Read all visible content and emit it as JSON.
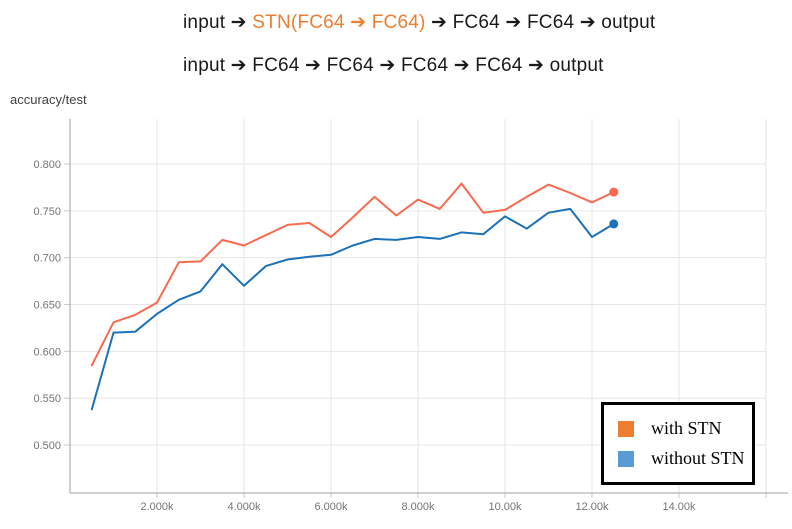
{
  "header": {
    "line1": {
      "prefix": "input ➔ ",
      "highlight": "STN(FC64 ➔ FC64)",
      "suffix": " ➔ FC64 ➔ FC64 ➔ output",
      "highlight_color": "#ED7D31"
    },
    "line2": "input ➔ FC64 ➔ FC64 ➔ FC64 ➔ FC64 ➔ output"
  },
  "chart": {
    "title": "accuracy/test"
  },
  "legend": {
    "items": [
      {
        "label": "with STN",
        "color": "#ED7D31"
      },
      {
        "label": "without STN",
        "color": "#5B9BD5"
      }
    ]
  },
  "chart_data": {
    "type": "line",
    "title": "accuracy/test",
    "xlabel": "",
    "ylabel": "",
    "x": [
      500,
      1000,
      1500,
      2000,
      2500,
      3000,
      3500,
      4000,
      4500,
      5000,
      5500,
      6000,
      6500,
      7000,
      7500,
      8000,
      8500,
      9000,
      9500,
      10000,
      10500,
      11000,
      11500,
      12000,
      12500
    ],
    "series": [
      {
        "name": "with STN",
        "color": "#f96a4f",
        "values": [
          0.585,
          0.631,
          0.639,
          0.652,
          0.695,
          0.696,
          0.719,
          0.713,
          0.724,
          0.735,
          0.737,
          0.722,
          0.743,
          0.765,
          0.745,
          0.762,
          0.752,
          0.779,
          0.748,
          0.751,
          0.765,
          0.778,
          0.769,
          0.759,
          0.77
        ]
      },
      {
        "name": "without STN",
        "color": "#1c72b8",
        "values": [
          0.538,
          0.62,
          0.621,
          0.64,
          0.655,
          0.664,
          0.693,
          0.67,
          0.691,
          0.698,
          0.701,
          0.703,
          0.713,
          0.72,
          0.719,
          0.722,
          0.72,
          0.727,
          0.725,
          0.744,
          0.731,
          0.748,
          0.752,
          0.722,
          0.736
        ]
      }
    ],
    "x_ticks": [
      {
        "v": 2000,
        "label": "2.000k"
      },
      {
        "v": 4000,
        "label": "4.000k"
      },
      {
        "v": 6000,
        "label": "6.000k"
      },
      {
        "v": 8000,
        "label": "8.000k"
      },
      {
        "v": 10000,
        "label": "10.00k"
      },
      {
        "v": 12000,
        "label": "12.00k"
      },
      {
        "v": 14000,
        "label": "14.00k"
      },
      {
        "v": 16000,
        "label": ""
      }
    ],
    "y_ticks": [
      {
        "v": 0.5,
        "label": "0.500"
      },
      {
        "v": 0.55,
        "label": "0.550"
      },
      {
        "v": 0.6,
        "label": "0.600"
      },
      {
        "v": 0.65,
        "label": "0.650"
      },
      {
        "v": 0.7,
        "label": "0.700"
      },
      {
        "v": 0.75,
        "label": "0.750"
      },
      {
        "v": 0.8,
        "label": "0.800"
      }
    ],
    "xlim": [
      0,
      16000
    ],
    "ylim": [
      0.4488,
      0.848
    ],
    "grid": true,
    "legend_position": "bottom-right",
    "end_markers": true
  }
}
